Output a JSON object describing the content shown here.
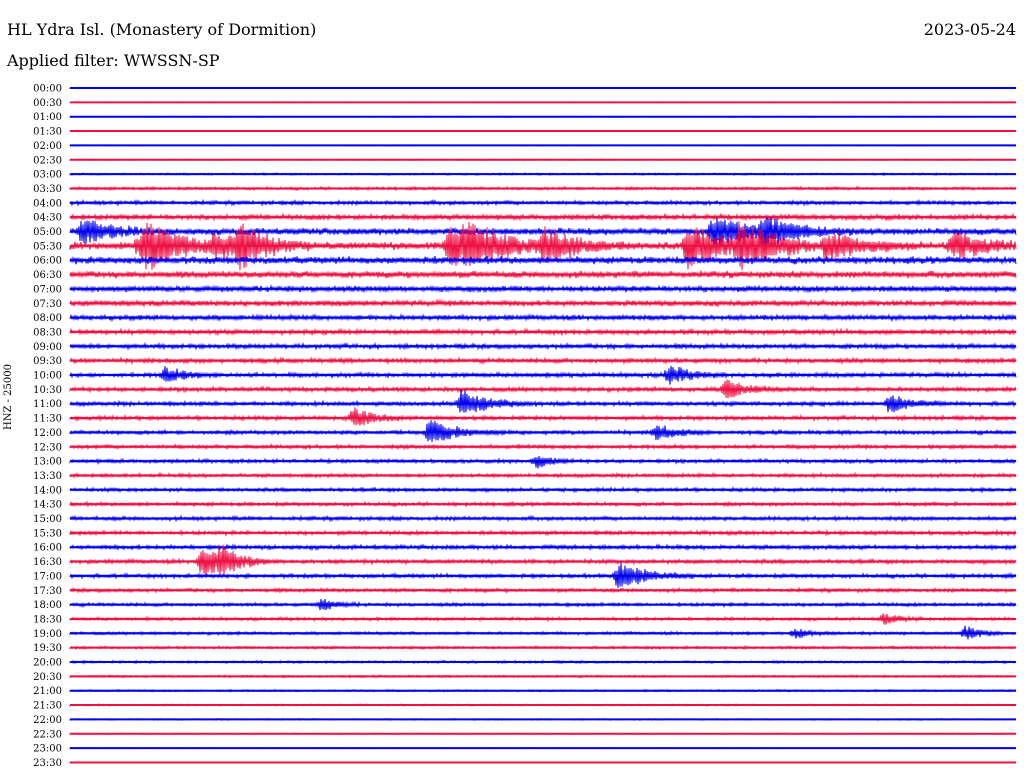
{
  "header": {
    "station": "HL Ydra Isl. (Monastery of Dormition)",
    "filter": "Applied filter: WWSSN-SP",
    "date": "2023-05-24"
  },
  "chart_data": {
    "type": "line",
    "title": "HL Ydra Isl. (Monastery of Dormition)",
    "subtitle": "Applied filter: WWSSN-SP",
    "ylabel": "HNZ - 25000",
    "xlabel": "",
    "row_labels": [
      "00:00",
      "00:30",
      "01:00",
      "01:30",
      "02:00",
      "02:30",
      "03:00",
      "03:30",
      "04:00",
      "04:30",
      "05:00",
      "05:30",
      "06:00",
      "06:30",
      "07:00",
      "07:30",
      "08:00",
      "08:30",
      "09:00",
      "09:30",
      "10:00",
      "10:30",
      "11:00",
      "11:30",
      "12:00",
      "12:30",
      "13:00",
      "13:30",
      "14:00",
      "14:30",
      "15:00",
      "15:30",
      "16:00",
      "16:30",
      "17:00",
      "17:30",
      "18:00",
      "18:30",
      "19:00",
      "19:30",
      "20:00",
      "20:30",
      "21:00",
      "21:30",
      "22:00",
      "22:30",
      "23:00",
      "23:30"
    ],
    "series_colors": [
      "#0000ee",
      "#ee1144"
    ],
    "noise_level": [
      0.3,
      0.3,
      0.3,
      0.3,
      0.4,
      0.5,
      0.8,
      1.2,
      1.6,
      2.2,
      2.8,
      3.2,
      3.0,
      2.8,
      2.5,
      2.3,
      2.1,
      2.0,
      1.9,
      1.9,
      1.8,
      1.8,
      1.7,
      1.7,
      1.6,
      1.6,
      1.5,
      1.5,
      1.5,
      1.5,
      1.6,
      1.6,
      1.7,
      1.7,
      1.6,
      1.5,
      1.4,
      1.3,
      1.2,
      1.1,
      1.0,
      0.9,
      0.8,
      0.7,
      0.6,
      0.5,
      0.4,
      0.3
    ],
    "events": [
      {
        "row": 10,
        "minute": 2,
        "amp": 14,
        "dur": 4
      },
      {
        "row": 11,
        "minute": 12,
        "amp": 16,
        "dur": 6
      },
      {
        "row": 11,
        "minute": 23,
        "amp": 12,
        "dur": 4
      },
      {
        "row": 11,
        "minute": 27,
        "amp": 18,
        "dur": 4
      },
      {
        "row": 11,
        "minute": 11,
        "amp": 10,
        "dur": 5
      },
      {
        "row": 11,
        "minute": 60,
        "amp": 20,
        "dur": 7
      },
      {
        "row": 11,
        "minute": 63,
        "amp": 14,
        "dur": 4
      },
      {
        "row": 11,
        "minute": 75,
        "amp": 16,
        "dur": 5
      },
      {
        "row": 11,
        "minute": 98,
        "amp": 22,
        "dur": 6
      },
      {
        "row": 10,
        "minute": 102,
        "amp": 16,
        "dur": 5
      },
      {
        "row": 11,
        "minute": 106,
        "amp": 18,
        "dur": 6
      },
      {
        "row": 10,
        "minute": 110,
        "amp": 12,
        "dur": 6
      },
      {
        "row": 11,
        "minute": 120,
        "amp": 14,
        "dur": 5
      },
      {
        "row": 11,
        "minute": 140,
        "amp": 16,
        "dur": 4
      },
      {
        "row": 20,
        "minute": 15,
        "amp": 8,
        "dur": 3
      },
      {
        "row": 23,
        "minute": 45,
        "amp": 10,
        "dur": 3
      },
      {
        "row": 24,
        "minute": 57,
        "amp": 12,
        "dur": 4
      },
      {
        "row": 22,
        "minute": 62,
        "amp": 14,
        "dur": 4
      },
      {
        "row": 20,
        "minute": 95,
        "amp": 10,
        "dur": 3
      },
      {
        "row": 21,
        "minute": 104,
        "amp": 10,
        "dur": 3
      },
      {
        "row": 22,
        "minute": 130,
        "amp": 10,
        "dur": 3
      },
      {
        "row": 24,
        "minute": 93,
        "amp": 8,
        "dur": 3
      },
      {
        "row": 26,
        "minute": 74,
        "amp": 8,
        "dur": 2
      },
      {
        "row": 33,
        "minute": 21,
        "amp": 18,
        "dur": 3
      },
      {
        "row": 33,
        "minute": 24,
        "amp": 10,
        "dur": 3
      },
      {
        "row": 34,
        "minute": 87,
        "amp": 16,
        "dur": 4
      },
      {
        "row": 36,
        "minute": 40,
        "amp": 6,
        "dur": 2
      },
      {
        "row": 37,
        "minute": 129,
        "amp": 6,
        "dur": 2
      },
      {
        "row": 38,
        "minute": 142,
        "amp": 8,
        "dur": 2
      },
      {
        "row": 38,
        "minute": 115,
        "amp": 6,
        "dur": 2
      }
    ]
  }
}
